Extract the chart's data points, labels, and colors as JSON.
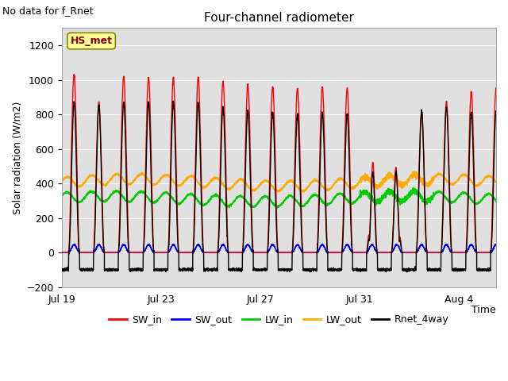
{
  "title": "Four-channel radiometer",
  "top_left_text": "No data for f_Rnet",
  "ylabel": "Solar radiation (W/m2)",
  "xlabel": "Time",
  "xlim_days": [
    0,
    17.5
  ],
  "ylim": [
    -200,
    1300
  ],
  "yticks": [
    -200,
    0,
    200,
    400,
    600,
    800,
    1000,
    1200
  ],
  "xtick_labels": [
    "Jul 19",
    "Jul 23",
    "Jul 27",
    "Jul 31",
    "Aug 4"
  ],
  "xtick_positions": [
    0,
    4,
    8,
    12,
    16
  ],
  "background_color": "#ffffff",
  "plot_bg_color": "#e0e0e0",
  "grid_color": "#ffffff",
  "legend_label": "HS_met",
  "legend_box_facecolor": "#ffff99",
  "legend_box_edgecolor": "#888800",
  "legend_text_color": "#880000",
  "series": {
    "SW_in": {
      "color": "#ff0000",
      "lw": 1.0
    },
    "SW_out": {
      "color": "#0000ff",
      "lw": 1.0
    },
    "LW_in": {
      "color": "#00cc00",
      "lw": 1.0
    },
    "LW_out": {
      "color": "#ffaa00",
      "lw": 1.0
    },
    "Rnet_4way": {
      "color": "#000000",
      "lw": 1.0
    }
  },
  "num_days": 18,
  "points_per_day": 288
}
